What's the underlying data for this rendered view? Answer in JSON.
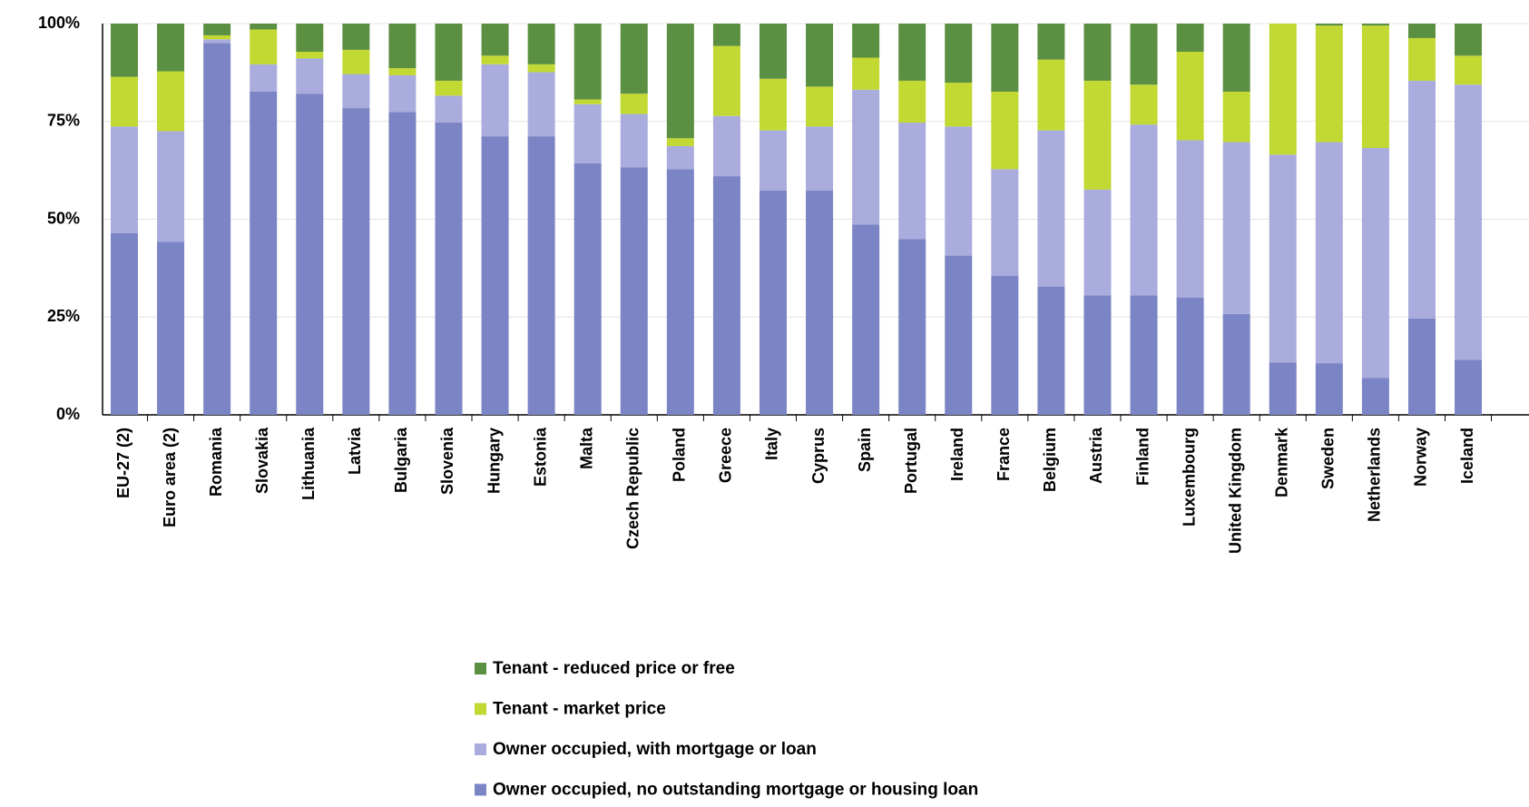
{
  "chart_data": {
    "type": "stacked_bar",
    "categories": [
      "EU-27 (2)",
      "Euro area (2)",
      "Romania",
      "Slovakia",
      "Lithuania",
      "Latvia",
      "Bulgaria",
      "Slovenia",
      "Hungary",
      "Estonia",
      "Malta",
      "Czech Republic",
      "Poland",
      "Greece",
      "Italy",
      "Cyprus",
      "Spain",
      "Portugal",
      "Ireland",
      "France",
      "Belgium",
      "Austria",
      "Finland",
      "Luxembourg",
      "United Kingdom",
      "Denmark",
      "Sweden",
      "Netherlands",
      "Norway",
      "Iceland"
    ],
    "series": [
      {
        "name": "Owner occupied, no outstanding mortgage or housing loan",
        "color": "#7b84c4",
        "values": [
          46.4,
          44.2,
          95.0,
          82.6,
          82.1,
          78.4,
          77.4,
          74.7,
          71.2,
          71.2,
          64.3,
          63.3,
          62.8,
          61.0,
          57.3,
          57.3,
          48.6,
          44.9,
          40.7,
          35.5,
          32.8,
          30.5,
          30.5,
          30.0,
          25.8,
          13.4,
          13.2,
          9.4,
          24.6,
          14.1
        ]
      },
      {
        "name": "Owner occupied, with mortgage or loan",
        "color": "#a9acdc",
        "values": [
          27.3,
          28.3,
          1.0,
          7.0,
          9.0,
          8.7,
          9.4,
          6.9,
          18.4,
          16.4,
          15.1,
          13.6,
          5.9,
          15.4,
          15.4,
          16.4,
          34.5,
          29.8,
          33.0,
          27.3,
          39.9,
          27.1,
          43.7,
          40.2,
          43.9,
          53.1,
          56.5,
          58.8,
          60.8,
          70.3
        ]
      },
      {
        "name": "Tenant - market price",
        "color": "#c2d833",
        "values": [
          12.7,
          15.3,
          1.0,
          8.9,
          1.7,
          6.2,
          1.8,
          3.8,
          2.2,
          2.0,
          1.2,
          5.2,
          2.0,
          17.9,
          13.2,
          10.2,
          8.2,
          10.7,
          11.2,
          19.8,
          18.1,
          27.8,
          10.2,
          22.6,
          12.9,
          33.5,
          29.8,
          31.3,
          10.9,
          7.4
        ]
      },
      {
        "name": "Tenant - reduced price or free",
        "color": "#5b8f42",
        "values": [
          13.6,
          12.2,
          3.0,
          1.5,
          7.2,
          6.7,
          11.4,
          14.6,
          8.2,
          10.4,
          19.4,
          17.9,
          29.3,
          5.7,
          14.1,
          16.1,
          8.7,
          14.6,
          15.1,
          17.4,
          9.2,
          14.6,
          15.6,
          7.2,
          17.4,
          0,
          0.5,
          0.5,
          3.7,
          8.2
        ]
      }
    ],
    "ylim": [
      0,
      100
    ],
    "yticks": [
      {
        "value": 0,
        "label": "0%"
      },
      {
        "value": 25,
        "label": "25%"
      },
      {
        "value": 50,
        "label": "50%"
      },
      {
        "value": 75,
        "label": "75%"
      },
      {
        "value": 100,
        "label": "100%"
      }
    ],
    "grid": true
  }
}
